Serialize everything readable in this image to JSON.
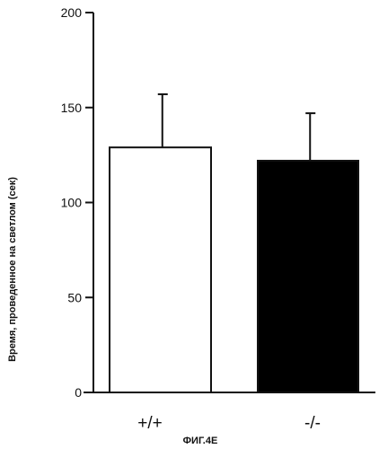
{
  "chart_data": {
    "type": "bar",
    "categories": [
      "+/+",
      "-/-"
    ],
    "values": [
      129,
      122
    ],
    "error": [
      28,
      25
    ],
    "bar_fills": [
      "#ffffff",
      "#000000"
    ],
    "ylabel": "Время, проведенное на светлом (сек)",
    "ylim": [
      0,
      200
    ],
    "yticks": [
      0,
      50,
      100,
      150,
      200
    ],
    "grid": false
  },
  "caption": "ФИГ.4E"
}
